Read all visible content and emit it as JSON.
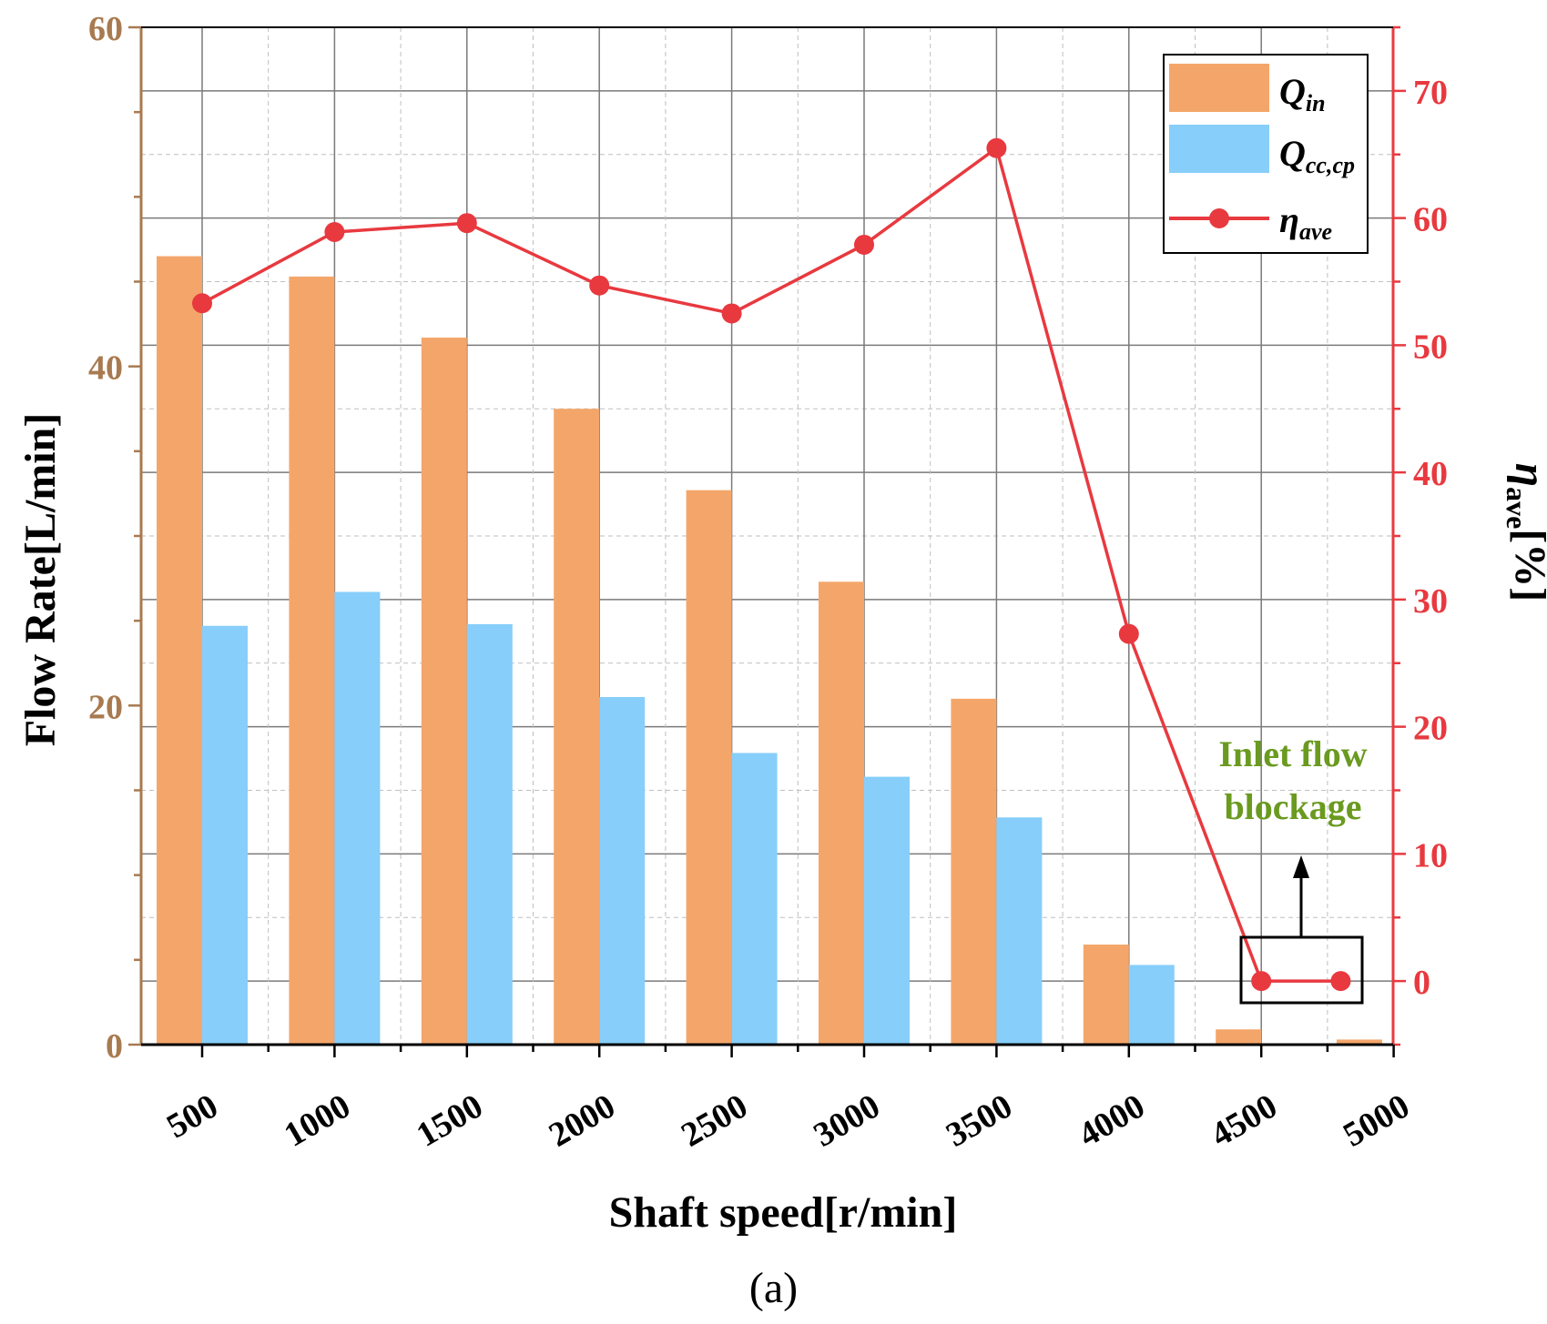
{
  "chart_data": {
    "type": "bar",
    "caption": "(a)",
    "xlabel": "Shaft speed[r/min]",
    "ylabel": "Flow Rate[L/min]",
    "y2label": {
      "symbol": "η",
      "sub": "ave",
      "unit": "[%]"
    },
    "x_ticks": [
      "500",
      "1000",
      "1500",
      "2000",
      "2500",
      "3000",
      "3500",
      "4000",
      "4500",
      "5000"
    ],
    "ylim": [
      0,
      60
    ],
    "y_ticks": [
      "0",
      "20",
      "40",
      "60"
    ],
    "y2lim": [
      -5,
      75
    ],
    "y2_ticks": [
      "0",
      "10",
      "20",
      "30",
      "40",
      "50",
      "60",
      "70"
    ],
    "categories": [
      "500",
      "1000",
      "1500",
      "2000",
      "2500",
      "3000",
      "3500",
      "4000",
      "4500"
    ],
    "series": [
      {
        "name": "Q_in",
        "label": {
          "main": "Q",
          "sub": "in"
        },
        "type": "bar",
        "color": "#F4A66A",
        "values": [
          46.5,
          45.3,
          41.7,
          37.5,
          32.7,
          27.3,
          20.4,
          5.9,
          0.9
        ],
        "extra_bar": 0.3
      },
      {
        "name": "Q_cc,cp",
        "label": {
          "main": "Q",
          "sub": "cc,cp"
        },
        "type": "bar",
        "color": "#87CEFA",
        "values": [
          24.7,
          26.7,
          24.8,
          20.5,
          17.2,
          15.8,
          13.4,
          4.7,
          0
        ]
      },
      {
        "name": "η_ave",
        "label": {
          "main": "η",
          "sub": "ave"
        },
        "type": "line",
        "color": "#E8393F",
        "axis": "right",
        "x": [
          500,
          1000,
          1500,
          2000,
          2500,
          3000,
          3500,
          4000,
          4500,
          4800
        ],
        "values": [
          53.3,
          58.9,
          59.6,
          54.7,
          52.5,
          57.9,
          65.5,
          27.3,
          0,
          0
        ]
      }
    ],
    "annotation": {
      "lines": [
        "Inlet flow",
        "blockage"
      ],
      "color": "#6A9A1F"
    },
    "grid": true,
    "legend": "top-right"
  }
}
